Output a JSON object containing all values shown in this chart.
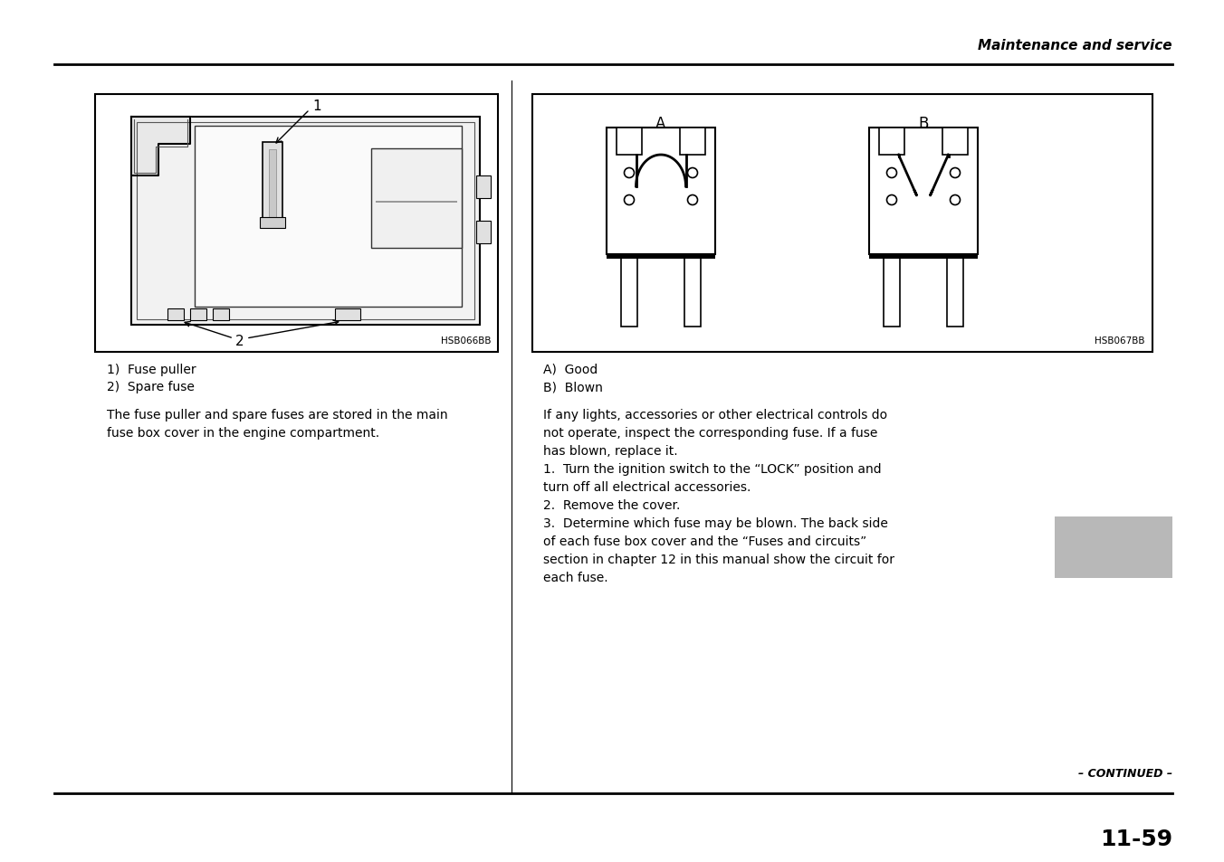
{
  "page_header": "Maintenance and service",
  "left_image_label": "HSB066BB",
  "right_image_label": "HSB067BB",
  "left_caption_1": "1)  Fuse puller",
  "left_caption_2": "2)  Spare fuse",
  "left_body": "The fuse puller and spare fuses are stored in the main\nfuse box cover in the engine compartment.",
  "right_caption_a": "A)  Good",
  "right_caption_b": "B)  Blown",
  "right_body": "If any lights, accessories or other electrical controls do\nnot operate, inspect the corresponding fuse. If a fuse\nhas blown, replace it.\n1.  Turn the ignition switch to the “LOCK” position and\nturn off all electrical accessories.\n2.  Remove the cover.\n3.  Determine which fuse may be blown. The back side\nof each fuse box cover and the “Fuses and circuits”\nsection in chapter 12 in this manual show the circuit for\neach fuse.",
  "footer_continued": "– CONTINUED –",
  "footer_page": "11-59",
  "bg_color": "#ffffff",
  "text_color": "#000000",
  "gray_box_color": "#b8b8b8"
}
